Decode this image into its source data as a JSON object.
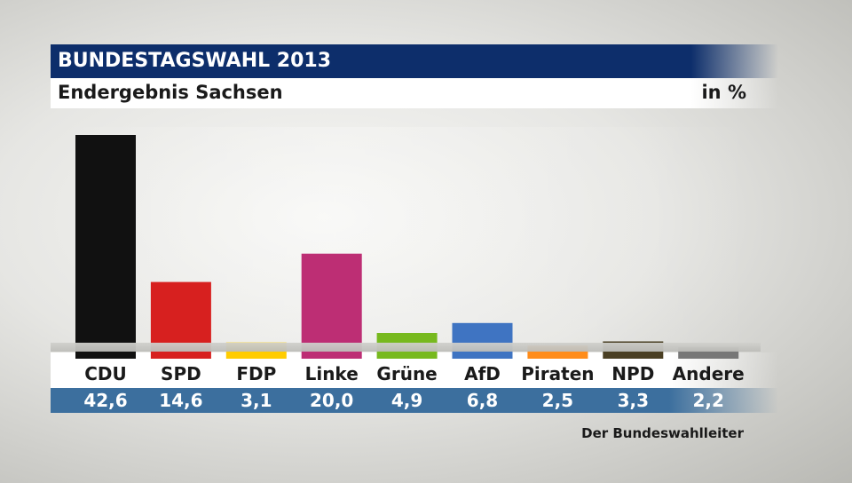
{
  "header": {
    "title": "BUNDESTAGSWAHL 2013",
    "subtitle": "Endergebnis Sachsen",
    "unit": "in %"
  },
  "source": "Der Bundeswahlleiter",
  "colors": {
    "title_bg": "#0d2e6b",
    "values_bg": "#3c6f9e"
  },
  "chart_data": {
    "type": "bar",
    "title": "BUNDESTAGSWAHL 2013",
    "subtitle": "Endergebnis Sachsen",
    "ylabel": "in %",
    "categories": [
      "CDU",
      "SPD",
      "FDP",
      "Linke",
      "Grüne",
      "AfD",
      "Piraten",
      "NPD",
      "Andere"
    ],
    "values": [
      42.6,
      14.6,
      3.1,
      20.0,
      4.9,
      6.8,
      2.5,
      3.3,
      2.2
    ],
    "value_labels": [
      "42,6",
      "14,6",
      "3,1",
      "20,0",
      "4,9",
      "6,8",
      "2,5",
      "3,3",
      "2,2"
    ],
    "colors": [
      "#111111",
      "#d7201f",
      "#ffcc00",
      "#bd2e74",
      "#77b91e",
      "#3f74c2",
      "#ff8c1a",
      "#4a3f23",
      "#777777"
    ],
    "ylim": [
      0,
      45
    ]
  }
}
